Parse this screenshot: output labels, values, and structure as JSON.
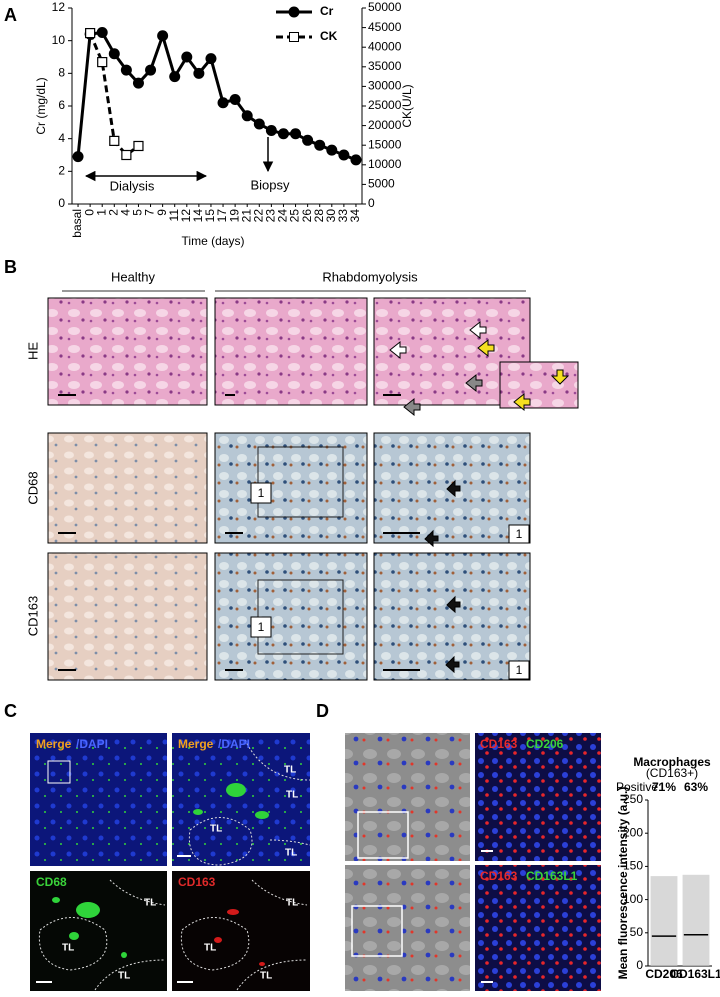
{
  "chart_data": [
    {
      "type": "line",
      "categories": [
        "basal",
        "0",
        "1",
        "2",
        "4",
        "5",
        "7",
        "9",
        "11",
        "12",
        "14",
        "15",
        "17",
        "19",
        "21",
        "22",
        "23",
        "24",
        "25",
        "26",
        "28",
        "30",
        "33",
        "34"
      ],
      "series": [
        {
          "name": "Cr",
          "color": "#000000",
          "marker": "circle",
          "dash": false,
          "values": [
            2.9,
            10.4,
            10.5,
            9.2,
            8.2,
            7.4,
            8.2,
            10.3,
            7.8,
            9.0,
            8.0,
            8.9,
            6.2,
            6.4,
            5.4,
            4.9,
            4.5,
            4.3,
            4.3,
            3.9,
            3.6,
            3.3,
            3.0,
            2.7
          ]
        },
        {
          "name": "CK",
          "color": "#000000",
          "marker": "square",
          "dash": true,
          "axis": "y2",
          "values": [
            null,
            43600,
            36200,
            16100,
            12500,
            14800,
            null,
            null,
            null,
            null,
            null,
            null,
            null,
            null,
            null,
            null,
            null,
            null,
            null,
            null,
            null,
            null,
            null,
            null
          ]
        }
      ],
      "ylim": [
        0,
        12
      ],
      "yticks": [
        0,
        2,
        4,
        6,
        8,
        10,
        12
      ],
      "y2lim": [
        0,
        50000
      ],
      "y2ticks": [
        0,
        5000,
        10000,
        15000,
        20000,
        25000,
        30000,
        35000,
        40000,
        45000,
        50000
      ],
      "ylabel": "Cr (mg/dL)",
      "y2label": "CK(U/L)",
      "xlabel": "Time (days)",
      "annotations": [
        "Dialysis",
        "Biopsy"
      ],
      "legend": "top-right"
    },
    {
      "type": "dot",
      "title": "Macrophages",
      "subtitle": "(CD163+)",
      "categories": [
        "CD206",
        "CD163L1"
      ],
      "values": [
        45,
        47
      ],
      "color": "#000000",
      "ylabel": "Mean fluorescence intensity (a.u.)",
      "ylim": [
        0,
        250
      ],
      "yticks": [
        0,
        50,
        100,
        150,
        200,
        250
      ],
      "annotations": [
        "Positive:",
        "71%",
        "63%"
      ]
    }
  ],
  "figure": {
    "panel_labels": [
      "A",
      "B",
      "C",
      "D"
    ],
    "b": {
      "groups": [
        "Healthy",
        "Rhabdomyolysis"
      ],
      "rows": [
        "HE",
        "CD68",
        "CD163"
      ],
      "inset_label": "1"
    },
    "c": {
      "merge": "Merge",
      "dapi": "/DAPI",
      "cd68": "CD68",
      "cd163": "CD163",
      "region": "TL"
    },
    "d": {
      "cd163": "CD163",
      "cd206": "CD206",
      "cd163l1": "CD163L1"
    }
  }
}
